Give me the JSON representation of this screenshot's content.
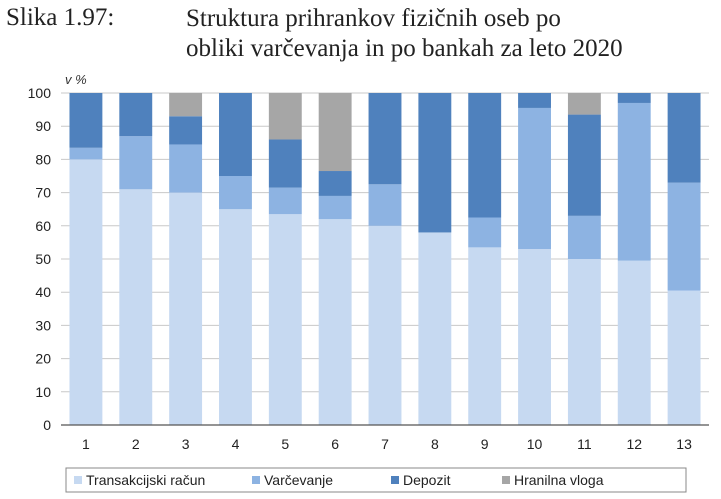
{
  "figure": {
    "label": "Slika 1.97:",
    "title_line1": "Struktura prihrankov fizičnih oseb po",
    "title_line2": "obliki varčevanja in po bankah za leto 2020"
  },
  "chart_data": {
    "type": "bar",
    "stacked": true,
    "title": "Struktura prihrankov fizičnih oseb po obliki varčevanja in po bankah za leto 2020",
    "ylabel": "v %",
    "xlabel": "",
    "ylim": [
      0,
      100
    ],
    "yticks": [
      0,
      10,
      20,
      30,
      40,
      50,
      60,
      70,
      80,
      90,
      100
    ],
    "grid": true,
    "legend_position": "bottom",
    "categories": [
      "1",
      "2",
      "3",
      "4",
      "5",
      "6",
      "7",
      "8",
      "9",
      "10",
      "11",
      "12",
      "13"
    ],
    "series": [
      {
        "name": "Transakcijski račun",
        "color": "#c6d9f1",
        "values": [
          80,
          71,
          70,
          65,
          63.5,
          62,
          60,
          58,
          53.5,
          53,
          50,
          49.5,
          40.5
        ]
      },
      {
        "name": "Varčevanje",
        "color": "#8db3e2",
        "values": [
          3.5,
          16,
          14.5,
          10,
          8,
          7,
          12.5,
          0,
          9,
          42.5,
          13,
          47.5,
          32.5
        ]
      },
      {
        "name": "Depozit",
        "color": "#4f81bd",
        "values": [
          16.5,
          13,
          8.5,
          25,
          14.5,
          7.5,
          27.5,
          42,
          37.5,
          4.5,
          30.5,
          3,
          27
        ]
      },
      {
        "name": "Hranilna vloga",
        "color": "#a6a6a6",
        "values": [
          0,
          0,
          7,
          0,
          14,
          23.5,
          0,
          0,
          0,
          0,
          6.5,
          0,
          0
        ]
      }
    ]
  }
}
